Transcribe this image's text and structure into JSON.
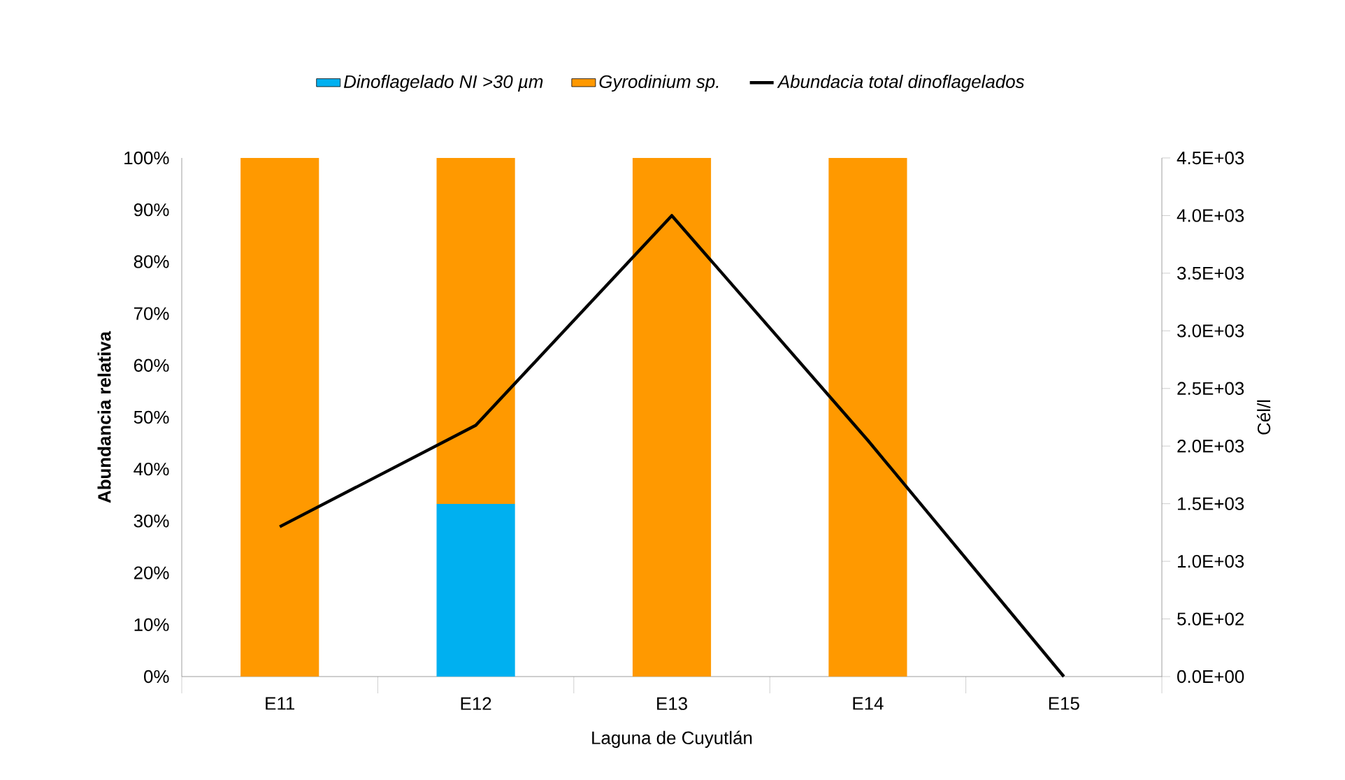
{
  "chart_data": {
    "type": "bar",
    "stacked": true,
    "xlabel": "Laguna de Cuyutlán",
    "ylabel": "Abundancia relativa",
    "y2label": "Cél/l",
    "legend": "top",
    "categories": [
      "E11",
      "E12",
      "E13",
      "E14",
      "E15"
    ],
    "series": [
      {
        "name": "Dinoflagelado NI >30 µm",
        "color": "#00b0f0",
        "values": [
          0,
          33.3,
          0,
          0,
          0
        ]
      },
      {
        "name": "Gyrodinium sp.",
        "color": "#ff9900",
        "values": [
          100,
          66.7,
          100,
          100,
          0
        ]
      },
      {
        "name": "Abundacia total dinoflagelados",
        "type": "line",
        "axis": "y2",
        "color": "#000000",
        "values": [
          1300,
          2180,
          4000,
          2050,
          0
        ]
      }
    ],
    "ylim": [
      0,
      100
    ],
    "yticks": [
      {
        "value": 0,
        "label": "0%"
      },
      {
        "value": 10,
        "label": "10%"
      },
      {
        "value": 20,
        "label": "20%"
      },
      {
        "value": 30,
        "label": "30%"
      },
      {
        "value": 40,
        "label": "40%"
      },
      {
        "value": 50,
        "label": "50%"
      },
      {
        "value": 60,
        "label": "60%"
      },
      {
        "value": 70,
        "label": "70%"
      },
      {
        "value": 80,
        "label": "80%"
      },
      {
        "value": 90,
        "label": "90%"
      },
      {
        "value": 100,
        "label": "100%"
      }
    ],
    "y2lim": [
      0,
      4500
    ],
    "y2ticks": [
      {
        "value": 0,
        "label": "0.0E+00"
      },
      {
        "value": 500,
        "label": "5.0E+02"
      },
      {
        "value": 1000,
        "label": "1.0E+03"
      },
      {
        "value": 1500,
        "label": "1.5E+03"
      },
      {
        "value": 2000,
        "label": "2.0E+03"
      },
      {
        "value": 2500,
        "label": "2.5E+03"
      },
      {
        "value": 3000,
        "label": "3.0E+03"
      },
      {
        "value": 3500,
        "label": "3.5E+03"
      },
      {
        "value": 4000,
        "label": "4.0E+03"
      },
      {
        "value": 4500,
        "label": "4.5E+03"
      }
    ]
  }
}
